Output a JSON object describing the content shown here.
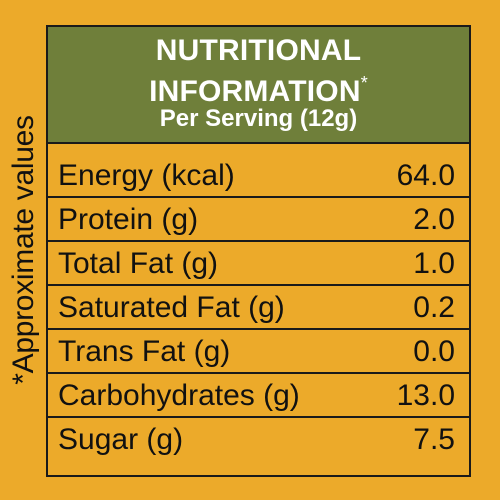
{
  "side_note": "*Approximate values",
  "header": {
    "title_line1": "NUTRITIONAL",
    "title_line2": "INFORMATION",
    "title_mark": "*",
    "serving": "Per Serving (12g)"
  },
  "nutrients": [
    {
      "label": "Energy (kcal)",
      "value": "64.0"
    },
    {
      "label": "Protein (g)",
      "value": "2.0"
    },
    {
      "label": "Total Fat (g)",
      "value": "1.0"
    },
    {
      "label": "Saturated Fat (g)",
      "value": "0.2"
    },
    {
      "label": "Trans Fat (g)",
      "value": "0.0"
    },
    {
      "label": "Carbohydrates (g)",
      "value": "13.0"
    },
    {
      "label": "Sugar (g)",
      "value": "7.5"
    }
  ],
  "colors": {
    "background": "#ecaa2a",
    "header": "#6f7f3a",
    "header_text": "#ffffff",
    "border": "#1a1a1a"
  }
}
